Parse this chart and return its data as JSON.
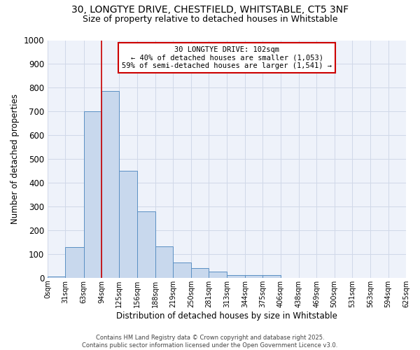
{
  "title_line1": "30, LONGTYE DRIVE, CHESTFIELD, WHITSTABLE, CT5 3NF",
  "title_line2": "Size of property relative to detached houses in Whitstable",
  "xlabel": "Distribution of detached houses by size in Whitstable",
  "ylabel": "Number of detached properties",
  "bin_edges": [
    0,
    31,
    63,
    94,
    125,
    156,
    188,
    219,
    250,
    281,
    313,
    344,
    375,
    406,
    438,
    469,
    500,
    531,
    563,
    594,
    625
  ],
  "bar_heights": [
    5,
    130,
    700,
    785,
    450,
    278,
    133,
    65,
    40,
    25,
    10,
    10,
    10,
    0,
    0,
    0,
    0,
    0,
    0,
    0
  ],
  "bar_facecolor": "#c8d8ed",
  "bar_edgecolor": "#5a8fc3",
  "grid_color": "#d0d8e8",
  "vline_x": 94,
  "vline_color": "#cc0000",
  "annotation_title": "30 LONGTYE DRIVE: 102sqm",
  "annotation_line2": "← 40% of detached houses are smaller (1,053)",
  "annotation_line3": "59% of semi-detached houses are larger (1,541) →",
  "annotation_box_edgecolor": "#cc0000",
  "ylim": [
    0,
    1000
  ],
  "tick_labels": [
    "0sqm",
    "31sqm",
    "63sqm",
    "94sqm",
    "125sqm",
    "156sqm",
    "188sqm",
    "219sqm",
    "250sqm",
    "281sqm",
    "313sqm",
    "344sqm",
    "375sqm",
    "406sqm",
    "438sqm",
    "469sqm",
    "500sqm",
    "531sqm",
    "563sqm",
    "594sqm",
    "625sqm"
  ],
  "footer1": "Contains HM Land Registry data © Crown copyright and database right 2025.",
  "footer2": "Contains public sector information licensed under the Open Government Licence v3.0.",
  "background_color": "#ffffff",
  "plot_bg_color": "#eef2fa"
}
